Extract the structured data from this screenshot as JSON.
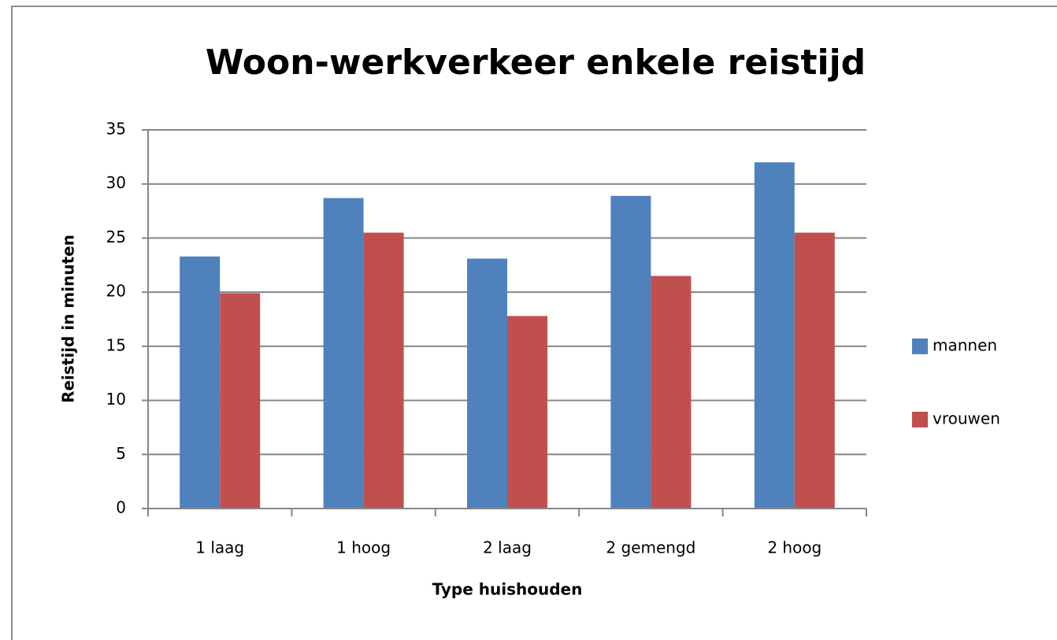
{
  "chart_data": {
    "type": "bar",
    "title": "Woon-werkverkeer enkele reistijd",
    "x_label": "Type huishouden",
    "y_label": "Reistijd in minuten",
    "categories": [
      "1 laag",
      "1 hoog",
      "2 laag",
      "2 gemengd",
      "2 hoog"
    ],
    "series": [
      {
        "name": "mannen",
        "color": "#4f81bd",
        "values": [
          23.3,
          28.7,
          23.1,
          28.9,
          32
        ]
      },
      {
        "name": "vrouwen",
        "color": "#c0504d",
        "values": [
          19.9,
          25.5,
          17.8,
          21.5,
          25.5
        ]
      }
    ],
    "ylim": [
      0,
      35
    ],
    "yticks": [
      0,
      5,
      10,
      15,
      20,
      25,
      30,
      35
    ],
    "grid": true,
    "legend": "right"
  }
}
